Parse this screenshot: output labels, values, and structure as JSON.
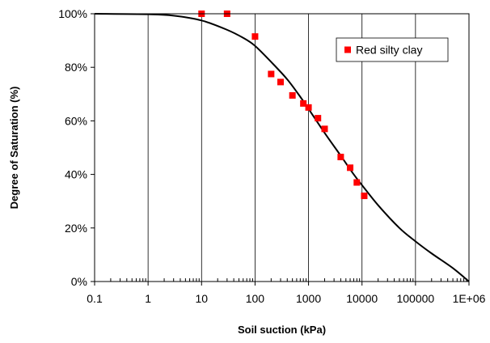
{
  "chart_data": {
    "type": "scatter",
    "xlabel": "Soil suction (kPa)",
    "ylabel": "Degree of Saturation (%)",
    "x_scale": "log",
    "xlim": [
      0.1,
      1000000
    ],
    "ylim": [
      0,
      100
    ],
    "x_ticks": [
      {
        "value": 0.1,
        "label": "0.1"
      },
      {
        "value": 1,
        "label": "1"
      },
      {
        "value": 10,
        "label": "10"
      },
      {
        "value": 100,
        "label": "100"
      },
      {
        "value": 1000,
        "label": "1000"
      },
      {
        "value": 10000,
        "label": "10000"
      },
      {
        "value": 100000,
        "label": "100000"
      },
      {
        "value": 1000000,
        "label": "1E+06"
      }
    ],
    "y_ticks": [
      {
        "value": 0,
        "label": "0%"
      },
      {
        "value": 20,
        "label": "20%"
      },
      {
        "value": 40,
        "label": "40%"
      },
      {
        "value": 60,
        "label": "60%"
      },
      {
        "value": 80,
        "label": "80%"
      },
      {
        "value": 100,
        "label": "100%"
      }
    ],
    "grid": {
      "x_major": true,
      "y_major": false
    },
    "legend_position": "top-right",
    "series": [
      {
        "name": "Red silty clay",
        "kind": "scatter",
        "marker": "square",
        "color": "#ff0000",
        "points": [
          [
            10,
            100
          ],
          [
            30,
            100
          ],
          [
            100,
            91.5
          ],
          [
            200,
            77.5
          ],
          [
            300,
            74.5
          ],
          [
            500,
            69.5
          ],
          [
            800,
            66.5
          ],
          [
            1000,
            65
          ],
          [
            1500,
            61
          ],
          [
            2000,
            57
          ],
          [
            4000,
            46.5
          ],
          [
            6000,
            42.5
          ],
          [
            8000,
            37
          ],
          [
            11000,
            32
          ]
        ]
      },
      {
        "kind": "line",
        "color": "#000000",
        "points": [
          [
            0.1,
            100
          ],
          [
            1,
            99.8
          ],
          [
            3,
            99.3
          ],
          [
            10,
            97.5
          ],
          [
            30,
            94
          ],
          [
            60,
            91
          ],
          [
            100,
            88
          ],
          [
            200,
            82
          ],
          [
            400,
            75.5
          ],
          [
            700,
            69
          ],
          [
            1000,
            64.5
          ],
          [
            2000,
            55.5
          ],
          [
            4000,
            47
          ],
          [
            7000,
            40
          ],
          [
            10000,
            36
          ],
          [
            20000,
            28.5
          ],
          [
            50000,
            20
          ],
          [
            100000,
            15
          ],
          [
            200000,
            10.5
          ],
          [
            500000,
            5
          ],
          [
            1000000,
            0
          ]
        ]
      }
    ]
  }
}
